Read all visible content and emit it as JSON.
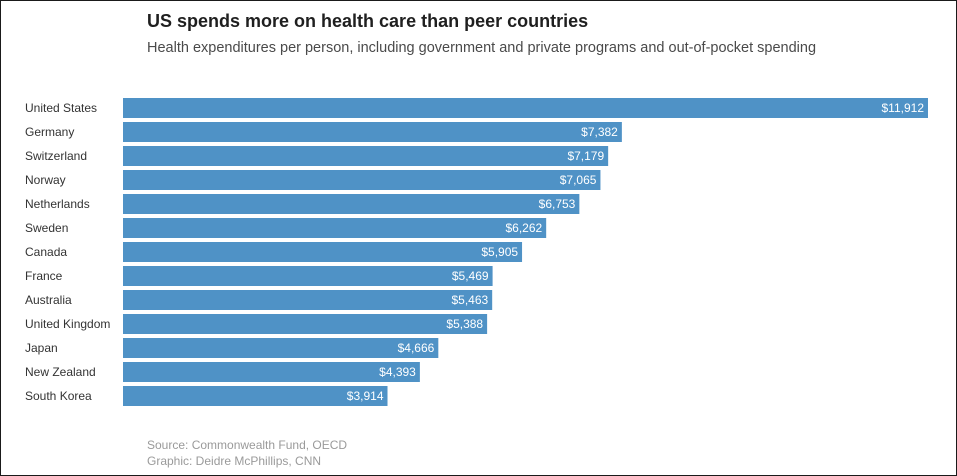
{
  "title": "US spends more on health care than peer countries",
  "subtitle": "Health expenditures per person, including government and private programs and out-of-pocket spending",
  "source_line": "Source: Commonwealth Fund, OECD",
  "credit_line": "Graphic: Deidre McPhillips, CNN",
  "colors": {
    "bar": "#4f92c6",
    "label": "#ffffff",
    "category": "#333333"
  },
  "chart_data": {
    "type": "bar",
    "orientation": "horizontal",
    "title": "US spends more on health care than peer countries",
    "subtitle": "Health expenditures per person, including government and private programs and out-of-pocket spending",
    "xlabel": "",
    "ylabel": "",
    "xlim": [
      0,
      11912
    ],
    "grid": false,
    "categories": [
      "United States",
      "Germany",
      "Switzerland",
      "Norway",
      "Netherlands",
      "Sweden",
      "Canada",
      "France",
      "Australia",
      "United Kingdom",
      "Japan",
      "New Zealand",
      "South Korea"
    ],
    "values": [
      11912,
      7382,
      7179,
      7065,
      6753,
      6262,
      5905,
      5469,
      5463,
      5388,
      4666,
      4393,
      3914
    ],
    "value_labels": [
      "$11,912",
      "$7,382",
      "$7,179",
      "$7,065",
      "$6,753",
      "$6,262",
      "$5,905",
      "$5,469",
      "$5,463",
      "$5,388",
      "$4,666",
      "$4,393",
      "$3,914"
    ]
  }
}
